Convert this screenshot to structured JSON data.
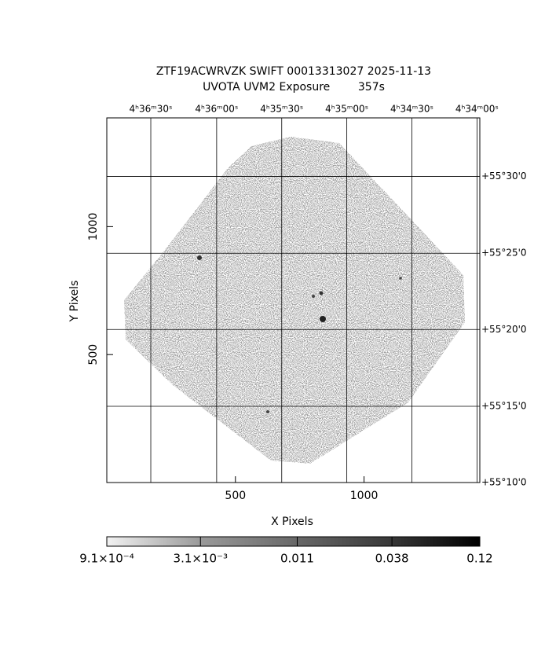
{
  "chart_data": {
    "type": "image",
    "title": "ZTF19ACWRVZK SWIFT 00013313027 2025-11-13",
    "subtitle": "UVOTA UVM2 Exposure        357s",
    "x_label": "X Pixels",
    "y_label": "Y Pixels",
    "xlim": [
      0,
      1450
    ],
    "ylim": [
      0,
      1425
    ],
    "xticks": [
      500,
      1000
    ],
    "yticks": [
      500,
      1000
    ],
    "grid": true,
    "ra_grid": [
      {
        "value": 171,
        "label": "4ʰ36ᵐ30ˢ"
      },
      {
        "value": 427,
        "label": "4ʰ36ᵐ00ˢ"
      },
      {
        "value": 680,
        "label": "4ʰ35ᵐ30ˢ"
      },
      {
        "value": 933,
        "label": "4ʰ35ᵐ00ˢ"
      },
      {
        "value": 1186,
        "label": "4ʰ34ᵐ30ˢ"
      },
      {
        "value": 1439,
        "label": "4ʰ34ᵐ00ˢ"
      }
    ],
    "dec_grid": [
      {
        "value": 1196,
        "label": "+55°30'0"
      },
      {
        "value": 896,
        "label": "+55°25'0"
      },
      {
        "value": 598,
        "label": "+55°20'0"
      },
      {
        "value": 298,
        "label": "+55°15'0"
      },
      {
        "value": 0,
        "label": "+55°10'0"
      }
    ],
    "colorbar": {
      "scale": "log",
      "lim": [
        0.00091,
        0.12
      ],
      "ticks": [
        {
          "value": 0.00091,
          "label": "9.1×10⁻⁴"
        },
        {
          "value": 0.0031,
          "label": "3.1×10⁻³"
        },
        0.011,
        0.038,
        0.12
      ]
    }
  }
}
